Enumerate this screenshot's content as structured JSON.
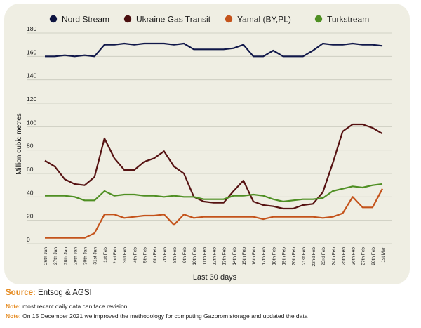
{
  "chart_data": {
    "type": "line",
    "xlabel": "Last 30 days",
    "ylabel": "Million cubic metres",
    "ylim": [
      0,
      180
    ],
    "yticks": [
      0,
      20,
      40,
      60,
      80,
      100,
      120,
      140,
      160,
      180
    ],
    "grid": "horizontal",
    "legend_position": "top",
    "categories": [
      "26th Jan",
      "27th Jan",
      "28th Jan",
      "29th Jan",
      "30th Jan",
      "31st Jan",
      "1st Feb",
      "2nd Feb",
      "3rd Feb",
      "4th Feb",
      "5th Feb",
      "6th Feb",
      "7th Feb",
      "8th Feb",
      "9th Feb",
      "10th Feb",
      "11th Feb",
      "12th Feb",
      "13th Feb",
      "14th Feb",
      "15th Feb",
      "16th Feb",
      "17th Feb",
      "18th Feb",
      "19th Feb",
      "20th Feb",
      "21st Feb",
      "22nd Feb",
      "23rd Feb",
      "24th Feb",
      "25th Feb",
      "26th Feb",
      "27th Feb",
      "28th Feb",
      "1st Mar"
    ],
    "series": [
      {
        "name": "Nord Stream",
        "color": "#11184a",
        "marker": "#0d1440",
        "values": [
          160,
          160,
          161,
          160,
          161,
          160,
          170,
          170,
          171,
          170,
          171,
          171,
          171,
          170,
          171,
          166,
          166,
          166,
          166,
          167,
          170,
          160,
          160,
          165,
          160,
          160,
          160,
          165,
          171,
          170,
          170,
          171,
          170,
          170,
          169
        ]
      },
      {
        "name": "Ukraine Gas Transit",
        "color": "#561212",
        "marker": "#4a0e0e",
        "values": [
          71,
          66,
          55,
          51,
          50,
          57,
          90,
          73,
          63,
          63,
          70,
          73,
          79,
          66,
          60,
          40,
          36,
          35,
          35,
          45,
          54,
          36,
          33,
          32,
          30,
          30,
          33,
          34,
          44,
          69,
          96,
          102,
          102,
          99,
          94
        ]
      },
      {
        "name": "Yamal (BY,PL)",
        "color": "#c4531b",
        "marker": "#c4531b",
        "values": [
          5,
          5,
          5,
          5,
          5,
          9,
          25,
          25,
          22,
          23,
          24,
          24,
          25,
          16,
          25,
          22,
          23,
          23,
          23,
          23,
          23,
          23,
          21,
          23,
          23,
          23,
          23,
          23,
          22,
          23,
          26,
          40,
          31,
          31,
          47
        ]
      },
      {
        "name": "Turkstream",
        "color": "#4f8f23",
        "marker": "#4f8f23",
        "values": [
          41,
          41,
          41,
          40,
          37,
          37,
          45,
          41,
          42,
          42,
          41,
          41,
          40,
          41,
          40,
          40,
          38,
          38,
          38,
          41,
          41,
          42,
          41,
          38,
          36,
          37,
          38,
          38,
          39,
          45,
          47,
          49,
          48,
          50,
          51
        ]
      }
    ]
  },
  "footer": {
    "source_label": "Source:",
    "source_text": " Entsog & AGSI",
    "note_label": "Note:",
    "note1_text": " most recent daily data can face revision",
    "note2_text": " On 15 December 2021 we improved the methodology for computing Gazprom storage and updated the data"
  }
}
